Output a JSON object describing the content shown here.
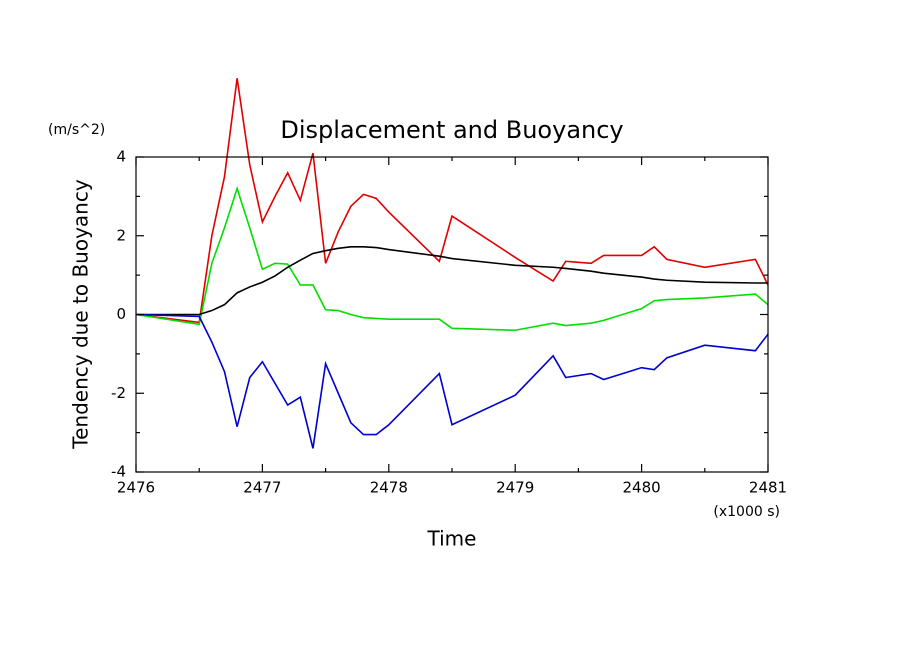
{
  "chart_data": {
    "type": "line",
    "title": "Displacement and Buoyancy",
    "y_units": "(m/s^2)",
    "x_label": "Time",
    "x_units": "(x1000 s)",
    "y_label": "Tendency due to Buoyancy",
    "x": [
      2476,
      2476.5,
      2476.6,
      2476.7,
      2476.8,
      2476.9,
      2477.0,
      2477.1,
      2477.2,
      2477.3,
      2477.4,
      2477.5,
      2477.6,
      2477.7,
      2477.8,
      2477.9,
      2478.0,
      2478.4,
      2478.5,
      2479.0,
      2479.3,
      2479.4,
      2479.6,
      2479.7,
      2480.0,
      2480.1,
      2480.2,
      2480.5,
      2480.9,
      2481.0
    ],
    "series": [
      {
        "color": "#e00000",
        "values": [
          0,
          -0.2,
          2.0,
          3.5,
          6.0,
          3.8,
          2.35,
          3.0,
          3.6,
          2.9,
          4.1,
          1.3,
          2.1,
          2.75,
          3.05,
          2.95,
          2.6,
          1.35,
          2.5,
          1.45,
          0.85,
          1.35,
          1.3,
          1.5,
          1.5,
          1.72,
          1.4,
          1.2,
          1.4,
          0.75
        ]
      },
      {
        "color": "#00e000",
        "values": [
          0,
          -0.25,
          1.3,
          2.2,
          3.2,
          2.2,
          1.15,
          1.3,
          1.28,
          0.75,
          0.75,
          0.12,
          0.1,
          0.0,
          -0.08,
          -0.1,
          -0.12,
          -0.12,
          -0.35,
          -0.4,
          -0.22,
          -0.28,
          -0.22,
          -0.15,
          0.15,
          0.35,
          0.38,
          0.42,
          0.52,
          0.25
        ]
      },
      {
        "color": "#000000",
        "values": [
          0,
          0.0,
          0.1,
          0.25,
          0.55,
          0.7,
          0.82,
          0.98,
          1.2,
          1.38,
          1.55,
          1.62,
          1.68,
          1.72,
          1.72,
          1.7,
          1.65,
          1.48,
          1.42,
          1.25,
          1.2,
          1.17,
          1.1,
          1.05,
          0.95,
          0.9,
          0.87,
          0.82,
          0.8,
          0.8
        ]
      },
      {
        "color": "#0000d0",
        "values": [
          0,
          -0.05,
          -0.7,
          -1.45,
          -2.85,
          -1.6,
          -1.2,
          -1.75,
          -2.3,
          -2.1,
          -3.4,
          -1.25,
          -2.0,
          -2.75,
          -3.05,
          -3.05,
          -2.8,
          -1.5,
          -2.8,
          -2.05,
          -1.05,
          -1.6,
          -1.5,
          -1.65,
          -1.35,
          -1.4,
          -1.1,
          -0.78,
          -0.92,
          -0.5
        ]
      }
    ],
    "xlim": [
      2476,
      2481
    ],
    "ylim": [
      -4,
      4
    ],
    "xticks": [
      2476,
      2477,
      2478,
      2479,
      2480,
      2481
    ],
    "yticks": [
      -4,
      -2,
      0,
      2,
      4
    ],
    "xminorticks": [
      2476.5,
      2477.5,
      2478.5,
      2479.5,
      2480.5
    ],
    "yminorticks": [
      -3,
      -1,
      1,
      3
    ]
  }
}
